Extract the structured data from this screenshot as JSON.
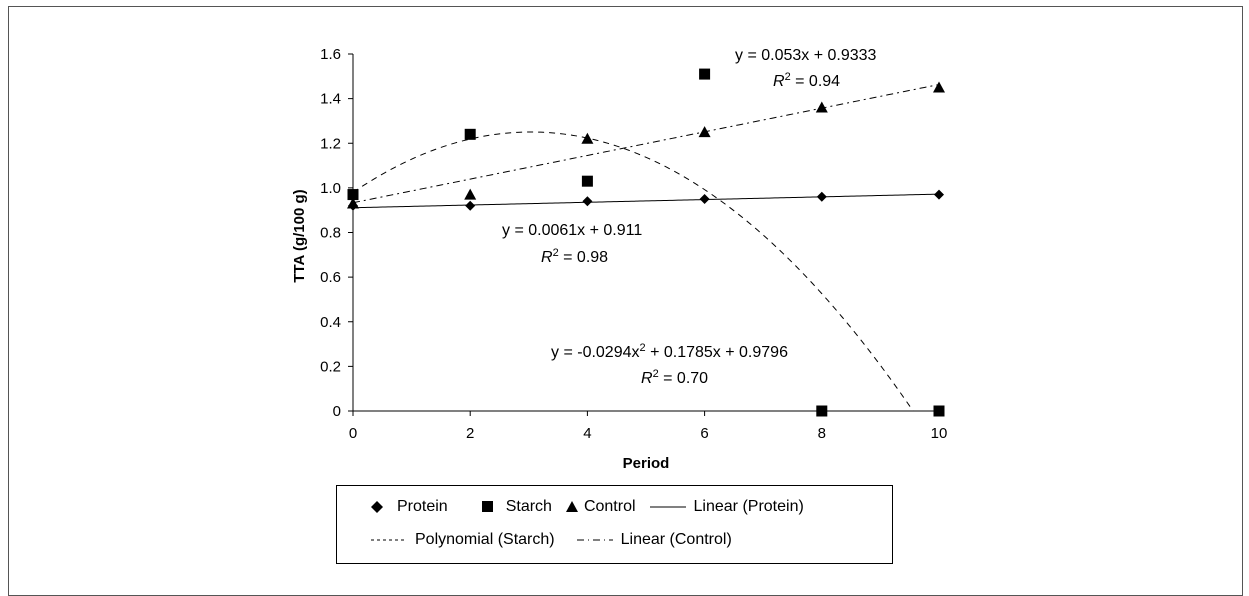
{
  "chart_data": {
    "type": "scatter",
    "xlabel": "Period",
    "ylabel": "TTA  (g/100 g)",
    "xlim": [
      0,
      10
    ],
    "ylim": [
      0,
      1.6
    ],
    "x_ticks": [
      "0",
      "2",
      "4",
      "6",
      "8",
      "10"
    ],
    "y_ticks": [
      "0",
      "0.2",
      "0.4",
      "0.6",
      "0.8",
      "1.0",
      "1.2",
      "1.4",
      "1.6"
    ],
    "series": [
      {
        "name": "Protein",
        "marker": "diamond",
        "x": [
          0,
          2,
          4,
          6,
          8,
          10
        ],
        "y": [
          0.92,
          0.92,
          0.94,
          0.95,
          0.96,
          0.97
        ]
      },
      {
        "name": "Starch",
        "marker": "square",
        "x": [
          0,
          2,
          4,
          6,
          8,
          10
        ],
        "y": [
          0.97,
          1.24,
          1.03,
          1.51,
          0,
          0
        ]
      },
      {
        "name": "Control",
        "marker": "triangle",
        "x": [
          0,
          2,
          4,
          6,
          8,
          10
        ],
        "y": [
          0.93,
          0.97,
          1.22,
          1.25,
          1.36,
          1.45
        ]
      }
    ],
    "trendlines": [
      {
        "name": "Linear (Protein)",
        "type": "linear",
        "coeffs": [
          0.911,
          0.0061
        ],
        "style": "solid",
        "equation": "y = 0.0061x + 0.911",
        "r2_label": "R",
        "r2_sup": "2",
        "r2_value": " = 0.98"
      },
      {
        "name": "Polynomial (Starch)",
        "type": "poly2",
        "coeffs": [
          0.9796,
          0.1785,
          -0.0294
        ],
        "style": "dashed",
        "equation": "y = -0.0294x",
        "equation_sup": "2",
        "equation_rest": " + 0.1785x + 0.9796",
        "r2_label": "R",
        "r2_sup": "2",
        "r2_value": " = 0.70"
      },
      {
        "name": "Linear (Control)",
        "type": "linear",
        "coeffs": [
          0.9333,
          0.053
        ],
        "style": "dashdot",
        "equation": "y = 0.053x + 0.9333",
        "r2_label": "R",
        "r2_sup": "2",
        "r2_value": " = 0.94"
      }
    ],
    "legend": {
      "position": "bottom",
      "row1": [
        "Protein",
        "Starch",
        "Control",
        "Linear (Protein)"
      ],
      "row2": [
        "Polynomial (Starch)",
        "Linear (Control)"
      ]
    }
  }
}
